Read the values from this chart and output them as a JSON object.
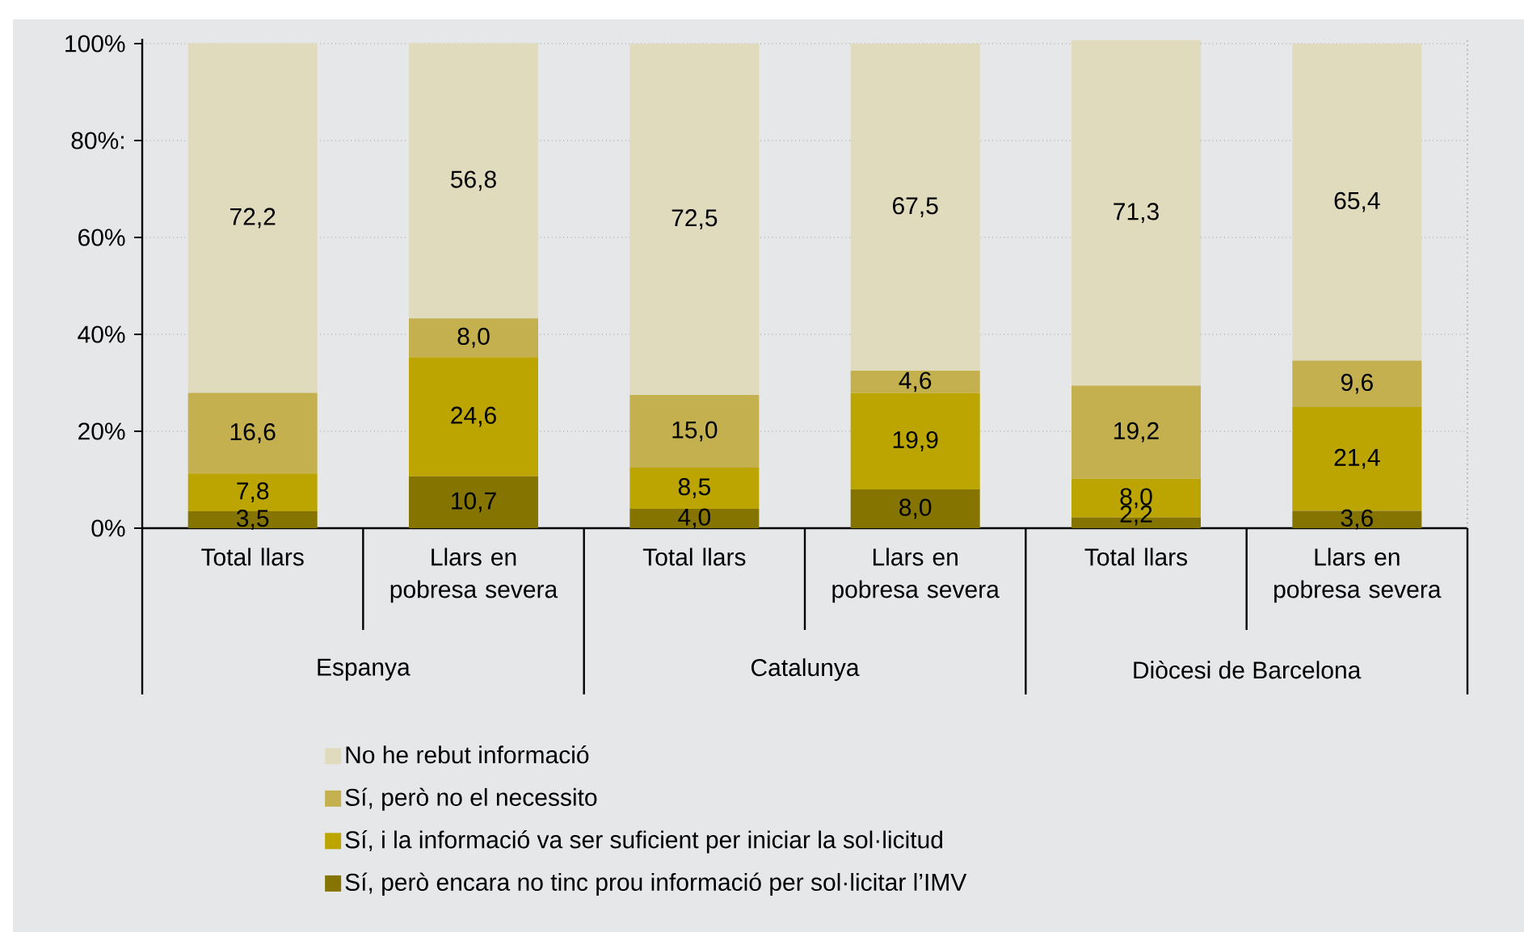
{
  "chart_data": {
    "type": "bar",
    "stacked": true,
    "categories": [
      "Total llars",
      "Llars en pobresa severa",
      "Total llars",
      "Llars en pobresa severa",
      "Total llars",
      "Llars en pobresa severa"
    ],
    "series": [
      {
        "name": "Sí, però encara no tinc prou informació per sol·licitar l’IMV",
        "color": "#857400",
        "values": [
          3.5,
          10.7,
          4.0,
          8.0,
          2.2,
          3.6
        ],
        "value_labels": [
          "3,5",
          "10,7",
          "4,0",
          "8,0",
          "2,2",
          "3,6"
        ]
      },
      {
        "name": "Sí, i la informació va ser suficient per iniciar la sol·licitud",
        "color": "#bca500",
        "values": [
          7.8,
          24.6,
          8.5,
          19.9,
          8.0,
          21.4
        ],
        "value_labels": [
          "7,8",
          "24,6",
          "8,5",
          "19,9",
          "8,0",
          "21,4"
        ]
      },
      {
        "name": "Sí, però no el necessito",
        "color": "#c4b04e",
        "values": [
          16.6,
          8.0,
          15.0,
          4.6,
          19.2,
          9.6
        ],
        "value_labels": [
          "16,6",
          "8,0",
          "15,0",
          "4,6",
          "19,2",
          "9,6"
        ]
      },
      {
        "name": "No he rebut informació",
        "color": "#e0dbbd",
        "values": [
          72.2,
          56.8,
          72.5,
          67.5,
          71.3,
          65.4
        ],
        "value_labels": [
          "72,2",
          "56,8",
          "72,5",
          "67,5",
          "71,3",
          "65,4"
        ]
      }
    ],
    "ylim": [
      0,
      101
    ],
    "yticks": [
      {
        "value": 0,
        "label": "0%"
      },
      {
        "value": 20,
        "label": "20%"
      },
      {
        "value": 40,
        "label": "40%"
      },
      {
        "value": 60,
        "label": "60%"
      },
      {
        "value": 80,
        "label": "80%:"
      },
      {
        "value": 100,
        "label": "100%"
      }
    ],
    "grid": "y",
    "legend": "bottom",
    "annotations": [
      "Espanya",
      "Catalunya",
      "Diòcesi de Barcelona"
    ]
  }
}
